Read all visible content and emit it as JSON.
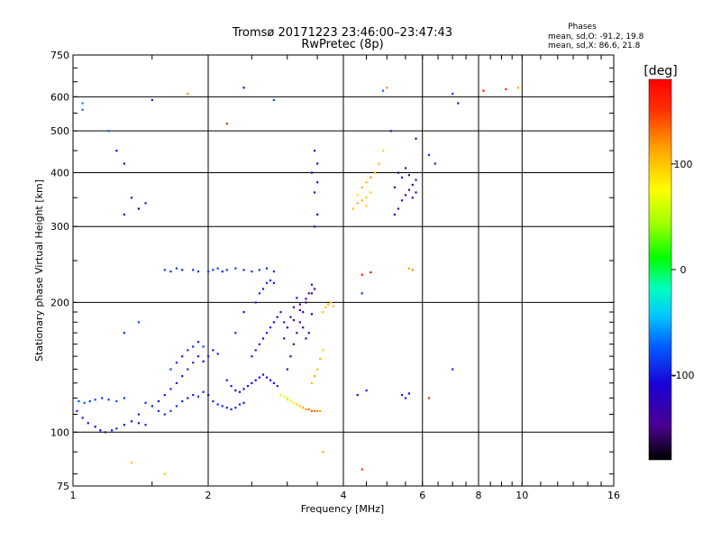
{
  "chart_data": {
    "type": "scatter",
    "title": "Tromsø 20171223 23:46:00–23:47:43",
    "subtitle": "RwPretec (8p)",
    "xlabel": "Frequency [MHz]",
    "ylabel": "Stationary phase Virtual Height [km]",
    "x_scale": "log",
    "y_scale": "log",
    "xlim": [
      1,
      16
    ],
    "ylim": [
      75,
      750
    ],
    "x_ticks": [
      1,
      2,
      4,
      6,
      8,
      10,
      16
    ],
    "x_tick_labels": [
      "1",
      "2",
      "4",
      "6",
      "8",
      "10",
      "16"
    ],
    "y_ticks": [
      75,
      100,
      200,
      300,
      400,
      500,
      600,
      750
    ],
    "y_tick_labels": [
      "75",
      "100",
      "200",
      "300",
      "400",
      "500",
      "600",
      "750"
    ],
    "grid": true,
    "phase_stats": {
      "heading": "Phases",
      "line_o": "mean, sd,O: -91.2, 19.8",
      "line_x": "mean, sd,X:  86.6, 21.8"
    },
    "colorbar": {
      "label": "[deg]",
      "min": -180,
      "max": 180,
      "tick_values": [
        100,
        0,
        -100
      ],
      "tick_labels": [
        "100",
        "0",
        "-100"
      ],
      "colormap": "rainbow"
    },
    "series": [
      {
        "points": [
          [
            1.02,
            112,
            -95
          ],
          [
            1.05,
            108,
            -95
          ],
          [
            1.08,
            105,
            -100
          ],
          [
            1.12,
            103,
            -105
          ],
          [
            1.15,
            101,
            -110
          ],
          [
            1.18,
            100,
            -105
          ],
          [
            1.22,
            101,
            -100
          ],
          [
            1.25,
            102,
            -95
          ],
          [
            1.3,
            104,
            -100
          ],
          [
            1.35,
            106,
            -110
          ],
          [
            1.4,
            105,
            -100
          ],
          [
            1.45,
            104,
            -95
          ],
          [
            1.03,
            118,
            -80
          ],
          [
            1.06,
            117,
            -75
          ],
          [
            1.09,
            118,
            -85
          ],
          [
            1.12,
            119,
            -80
          ],
          [
            1.16,
            120,
            -90
          ],
          [
            1.2,
            119,
            -85
          ],
          [
            1.25,
            118,
            -80
          ],
          [
            1.3,
            120,
            -90
          ],
          [
            1.45,
            117,
            -95
          ],
          [
            1.5,
            115,
            -100
          ],
          [
            1.55,
            118,
            -105
          ],
          [
            1.6,
            122,
            -100
          ],
          [
            1.65,
            126,
            -95
          ],
          [
            1.7,
            130,
            -100
          ],
          [
            1.75,
            135,
            -95
          ],
          [
            1.8,
            140,
            -90
          ],
          [
            1.85,
            145,
            -95
          ],
          [
            1.9,
            150,
            -100
          ],
          [
            1.95,
            146,
            -105
          ],
          [
            2.0,
            150,
            -95
          ],
          [
            2.05,
            155,
            -100
          ],
          [
            2.1,
            152,
            -95
          ],
          [
            1.55,
            112,
            -90
          ],
          [
            1.6,
            110,
            -95
          ],
          [
            1.65,
            112,
            -85
          ],
          [
            1.7,
            115,
            -90
          ],
          [
            1.75,
            118,
            -95
          ],
          [
            1.8,
            120,
            -100
          ],
          [
            1.85,
            122,
            -95
          ],
          [
            1.9,
            121,
            -90
          ],
          [
            1.95,
            124,
            -100
          ],
          [
            2.0,
            122,
            -105
          ],
          [
            2.05,
            118,
            -95
          ],
          [
            2.1,
            116,
            -90
          ],
          [
            2.15,
            115,
            -95
          ],
          [
            2.2,
            114,
            -100
          ],
          [
            2.25,
            113,
            -95
          ],
          [
            2.3,
            114,
            -90
          ],
          [
            2.35,
            116,
            -95
          ],
          [
            2.4,
            117,
            -100
          ],
          [
            1.65,
            140,
            -85
          ],
          [
            1.7,
            145,
            -90
          ],
          [
            1.75,
            150,
            -95
          ],
          [
            1.8,
            155,
            -90
          ],
          [
            1.85,
            158,
            -95
          ],
          [
            1.9,
            162,
            -100
          ],
          [
            1.95,
            158,
            -85
          ],
          [
            2.2,
            132,
            -100
          ],
          [
            2.25,
            128,
            -105
          ],
          [
            2.3,
            125,
            -110
          ],
          [
            2.35,
            124,
            -105
          ],
          [
            2.4,
            126,
            -100
          ],
          [
            2.45,
            128,
            -105
          ],
          [
            2.5,
            130,
            -110
          ],
          [
            2.55,
            132,
            -105
          ],
          [
            2.6,
            134,
            -100
          ],
          [
            2.65,
            136,
            -105
          ],
          [
            2.7,
            134,
            -110
          ],
          [
            2.75,
            132,
            -105
          ],
          [
            2.8,
            130,
            -100
          ],
          [
            2.85,
            128,
            -95
          ],
          [
            2.5,
            150,
            -100
          ],
          [
            2.55,
            155,
            -95
          ],
          [
            2.6,
            160,
            -100
          ],
          [
            2.65,
            165,
            -105
          ],
          [
            2.7,
            170,
            -100
          ],
          [
            2.75,
            175,
            -95
          ],
          [
            2.8,
            180,
            -100
          ],
          [
            2.85,
            185,
            -105
          ],
          [
            2.9,
            190,
            -100
          ],
          [
            2.95,
            180,
            -95
          ],
          [
            2.55,
            200,
            -90
          ],
          [
            2.6,
            210,
            -95
          ],
          [
            2.65,
            215,
            -100
          ],
          [
            2.7,
            222,
            -95
          ],
          [
            2.75,
            225,
            -90
          ],
          [
            2.8,
            222,
            -95
          ],
          [
            2.0,
            236,
            -85
          ],
          [
            2.05,
            238,
            -90
          ],
          [
            2.1,
            240,
            -85
          ],
          [
            2.15,
            236,
            -95
          ],
          [
            2.2,
            238,
            -90
          ],
          [
            2.3,
            240,
            -85
          ],
          [
            2.4,
            238,
            -95
          ],
          [
            2.5,
            236,
            -90
          ],
          [
            2.6,
            238,
            -85
          ],
          [
            2.7,
            240,
            -95
          ],
          [
            2.8,
            236,
            -90
          ],
          [
            1.6,
            238,
            -85
          ],
          [
            1.65,
            236,
            -90
          ],
          [
            1.7,
            240,
            -85
          ],
          [
            1.75,
            238,
            -95
          ],
          [
            1.85,
            238,
            -90
          ],
          [
            1.9,
            236,
            -85
          ],
          [
            3.0,
            140,
            -140
          ],
          [
            3.05,
            150,
            -135
          ],
          [
            3.1,
            160,
            -140
          ],
          [
            3.15,
            170,
            -145
          ],
          [
            3.2,
            180,
            -140
          ],
          [
            3.25,
            190,
            -135
          ],
          [
            3.3,
            200,
            -140
          ],
          [
            3.35,
            210,
            -145
          ],
          [
            3.4,
            220,
            -140
          ],
          [
            3.45,
            215,
            -135
          ],
          [
            3.05,
            185,
            -130
          ],
          [
            3.1,
            195,
            -135
          ],
          [
            3.15,
            205,
            -140
          ],
          [
            3.2,
            198,
            -145
          ],
          [
            3.25,
            175,
            -135
          ],
          [
            3.3,
            165,
            -140
          ],
          [
            3.35,
            170,
            -130
          ],
          [
            3.4,
            188,
            -135
          ],
          [
            2.95,
            165,
            -130
          ],
          [
            3.0,
            175,
            -135
          ],
          [
            3.1,
            182,
            -140
          ],
          [
            3.2,
            192,
            -145
          ],
          [
            3.3,
            204,
            -135
          ],
          [
            3.4,
            210,
            -140
          ],
          [
            3.0,
            120,
            60
          ],
          [
            3.05,
            118,
            70
          ],
          [
            3.1,
            117,
            80
          ],
          [
            3.15,
            116,
            90
          ],
          [
            3.2,
            115,
            100
          ],
          [
            3.25,
            114,
            110
          ],
          [
            3.3,
            113,
            120
          ],
          [
            3.35,
            113,
            130
          ],
          [
            3.4,
            112,
            140
          ],
          [
            3.45,
            112,
            130
          ],
          [
            3.5,
            112,
            120
          ],
          [
            3.55,
            112,
            110
          ],
          [
            2.9,
            122,
            60
          ],
          [
            2.95,
            121,
            70
          ],
          [
            3.0,
            119,
            85
          ],
          [
            3.4,
            130,
            100
          ],
          [
            3.45,
            135,
            110
          ],
          [
            3.5,
            140,
            100
          ],
          [
            3.55,
            148,
            105
          ],
          [
            3.6,
            155,
            95
          ],
          [
            3.6,
            190,
            100
          ],
          [
            3.65,
            195,
            105
          ],
          [
            3.7,
            198,
            110
          ],
          [
            3.75,
            200,
            100
          ],
          [
            3.8,
            196,
            105
          ],
          [
            3.45,
            300,
            -120
          ],
          [
            3.5,
            320,
            -115
          ],
          [
            3.45,
            360,
            -110
          ],
          [
            3.5,
            380,
            -115
          ],
          [
            3.4,
            400,
            -120
          ],
          [
            3.5,
            420,
            -115
          ],
          [
            3.45,
            450,
            -110
          ],
          [
            4.2,
            330,
            100
          ],
          [
            4.3,
            340,
            105
          ],
          [
            4.4,
            345,
            110
          ],
          [
            4.5,
            350,
            100
          ],
          [
            4.6,
            360,
            95
          ],
          [
            4.4,
            370,
            110
          ],
          [
            4.5,
            380,
            105
          ],
          [
            4.6,
            390,
            115
          ],
          [
            4.7,
            400,
            100
          ],
          [
            4.8,
            420,
            105
          ],
          [
            4.3,
            355,
            90
          ],
          [
            4.5,
            335,
            95
          ],
          [
            5.2,
            320,
            -140
          ],
          [
            5.3,
            330,
            -145
          ],
          [
            5.4,
            345,
            -140
          ],
          [
            5.5,
            355,
            -135
          ],
          [
            5.6,
            365,
            -140
          ],
          [
            5.7,
            375,
            -145
          ],
          [
            5.8,
            385,
            -140
          ],
          [
            5.3,
            400,
            -135
          ],
          [
            5.5,
            410,
            -140
          ],
          [
            5.4,
            390,
            -145
          ],
          [
            5.6,
            395,
            -140
          ],
          [
            5.7,
            350,
            -135
          ],
          [
            5.2,
            370,
            -140
          ],
          [
            5.8,
            360,
            -145
          ],
          [
            4.4,
            232,
            170
          ],
          [
            4.6,
            235,
            165
          ],
          [
            5.6,
            240,
            115
          ],
          [
            5.7,
            238,
            120
          ],
          [
            4.3,
            122,
            -100
          ],
          [
            4.5,
            125,
            -95
          ],
          [
            5.4,
            122,
            -100
          ],
          [
            5.5,
            120,
            -95
          ],
          [
            5.6,
            123,
            -100
          ],
          [
            1.05,
            580,
            -60
          ],
          [
            1.05,
            560,
            -65
          ],
          [
            1.2,
            500,
            -70
          ],
          [
            1.25,
            450,
            -120
          ],
          [
            1.3,
            420,
            -130
          ],
          [
            1.35,
            350,
            -100
          ],
          [
            1.4,
            330,
            -110
          ],
          [
            1.3,
            320,
            -100
          ],
          [
            1.5,
            590,
            -100
          ],
          [
            1.45,
            340,
            -100
          ],
          [
            1.8,
            610,
            120
          ],
          [
            2.4,
            630,
            -140
          ],
          [
            2.2,
            520,
            160
          ],
          [
            2.8,
            590,
            -80
          ],
          [
            4.9,
            620,
            -70
          ],
          [
            5.0,
            630,
            120
          ],
          [
            7.2,
            580,
            -100
          ],
          [
            7.0,
            610,
            -90
          ],
          [
            8.2,
            620,
            180
          ],
          [
            9.2,
            625,
            160
          ],
          [
            9.8,
            630,
            110
          ],
          [
            1.4,
            110,
            -95
          ],
          [
            1.35,
            85,
            100
          ],
          [
            1.6,
            80,
            100
          ],
          [
            4.4,
            82,
            150
          ],
          [
            3.6,
            90,
            110
          ],
          [
            2.3,
            170,
            -90
          ],
          [
            2.4,
            190,
            -100
          ],
          [
            1.4,
            180,
            -80
          ],
          [
            1.3,
            170,
            -90
          ],
          [
            6.4,
            420,
            -100
          ],
          [
            6.2,
            440,
            -90
          ],
          [
            7.0,
            140,
            -95
          ],
          [
            6.2,
            120,
            160
          ],
          [
            4.9,
            450,
            90
          ],
          [
            5.1,
            500,
            -100
          ],
          [
            4.4,
            210,
            -90
          ],
          [
            5.8,
            480,
            -130
          ]
        ]
      }
    ]
  }
}
